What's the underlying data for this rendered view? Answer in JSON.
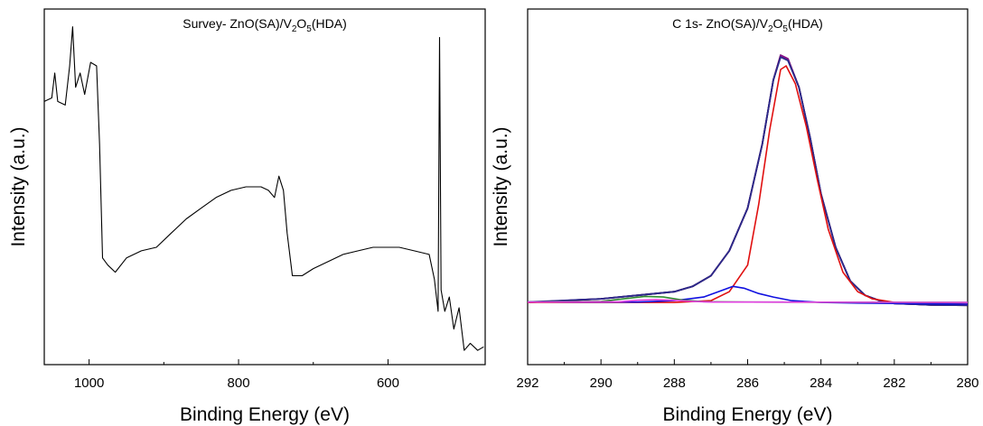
{
  "chart_data": [
    {
      "type": "line",
      "title_parts": [
        "Survey- ZnO(SA)/V",
        "2",
        "O",
        "5",
        "(HDA)"
      ],
      "xlabel": "Binding Energy (eV)",
      "ylabel": "Intensity (a.u.)",
      "xlim": [
        1060,
        470
      ],
      "ylim": [
        0,
        1
      ],
      "x_reversed": true,
      "y_ticks_shown": false,
      "x_ticks": [
        1000,
        800,
        600
      ],
      "x_tick_labels": [
        "1000",
        "800",
        "600"
      ],
      "grid": false,
      "series": [
        {
          "color": "#000000",
          "points": [
            [
              1060,
              0.74
            ],
            [
              1050,
              0.75
            ],
            [
              1046,
              0.82
            ],
            [
              1042,
              0.74
            ],
            [
              1032,
              0.73
            ],
            [
              1026,
              0.84
            ],
            [
              1022,
              0.95
            ],
            [
              1018,
              0.78
            ],
            [
              1012,
              0.82
            ],
            [
              1006,
              0.76
            ],
            [
              998,
              0.85
            ],
            [
              990,
              0.84
            ],
            [
              986,
              0.62
            ],
            [
              982,
              0.3
            ],
            [
              975,
              0.28
            ],
            [
              965,
              0.26
            ],
            [
              950,
              0.3
            ],
            [
              930,
              0.32
            ],
            [
              910,
              0.33
            ],
            [
              890,
              0.37
            ],
            [
              870,
              0.41
            ],
            [
              850,
              0.44
            ],
            [
              830,
              0.47
            ],
            [
              810,
              0.49
            ],
            [
              790,
              0.5
            ],
            [
              770,
              0.5
            ],
            [
              760,
              0.49
            ],
            [
              752,
              0.47
            ],
            [
              746,
              0.53
            ],
            [
              740,
              0.49
            ],
            [
              735,
              0.37
            ],
            [
              728,
              0.25
            ],
            [
              715,
              0.25
            ],
            [
              700,
              0.27
            ],
            [
              680,
              0.29
            ],
            [
              660,
              0.31
            ],
            [
              640,
              0.32
            ],
            [
              620,
              0.33
            ],
            [
              600,
              0.33
            ],
            [
              585,
              0.33
            ],
            [
              565,
              0.32
            ],
            [
              545,
              0.31
            ],
            [
              538,
              0.24
            ],
            [
              533,
              0.15
            ],
            [
              531,
              0.92
            ],
            [
              529,
              0.21
            ],
            [
              524,
              0.15
            ],
            [
              518,
              0.19
            ],
            [
              512,
              0.1
            ],
            [
              505,
              0.16
            ],
            [
              498,
              0.04
            ],
            [
              490,
              0.06
            ],
            [
              480,
              0.04
            ],
            [
              472,
              0.05
            ]
          ]
        }
      ]
    },
    {
      "type": "line",
      "title_parts": [
        "C 1s- ZnO(SA)/V",
        "2",
        "O",
        "5",
        "(HDA)"
      ],
      "xlabel": "Binding Energy (eV)",
      "ylabel": "Intensity (a.u.)",
      "xlim": [
        292,
        280
      ],
      "ylim": [
        0,
        1
      ],
      "x_reversed": true,
      "y_ticks_shown": false,
      "x_ticks": [
        292,
        290,
        288,
        286,
        284,
        282,
        280
      ],
      "x_tick_labels": [
        "292",
        "290",
        "288",
        "286",
        "284",
        "282",
        "280"
      ],
      "grid": false,
      "series": [
        {
          "color": "#000000",
          "points": [
            [
              292,
              0.175
            ],
            [
              290,
              0.185
            ],
            [
              289,
              0.195
            ],
            [
              288,
              0.205
            ],
            [
              287.5,
              0.22
            ],
            [
              287,
              0.25
            ],
            [
              286.5,
              0.32
            ],
            [
              286,
              0.44
            ],
            [
              285.6,
              0.62
            ],
            [
              285.3,
              0.8
            ],
            [
              285.1,
              0.87
            ],
            [
              284.9,
              0.86
            ],
            [
              284.6,
              0.78
            ],
            [
              284.3,
              0.64
            ],
            [
              284,
              0.48
            ],
            [
              283.6,
              0.33
            ],
            [
              283.2,
              0.235
            ],
            [
              282.8,
              0.195
            ],
            [
              282.4,
              0.18
            ],
            [
              282,
              0.172
            ],
            [
              281,
              0.168
            ],
            [
              280,
              0.167
            ]
          ]
        },
        {
          "color": "#8a0e8c",
          "points": [
            [
              292,
              0.175
            ],
            [
              290,
              0.185
            ],
            [
              289,
              0.195
            ],
            [
              288,
              0.205
            ],
            [
              287.5,
              0.22
            ],
            [
              287,
              0.25
            ],
            [
              286.5,
              0.32
            ],
            [
              286,
              0.44
            ],
            [
              285.6,
              0.62
            ],
            [
              285.3,
              0.8
            ],
            [
              285.1,
              0.87
            ],
            [
              284.9,
              0.86
            ],
            [
              284.6,
              0.78
            ],
            [
              284.3,
              0.64
            ],
            [
              284,
              0.48
            ],
            [
              283.6,
              0.33
            ],
            [
              283.2,
              0.235
            ],
            [
              282.8,
              0.195
            ],
            [
              282.4,
              0.18
            ],
            [
              282,
              0.172
            ],
            [
              281,
              0.168
            ],
            [
              280,
              0.167
            ]
          ]
        },
        {
          "color": "#2a2a8a",
          "points": [
            [
              292,
              0.176
            ],
            [
              290,
              0.185
            ],
            [
              289,
              0.195
            ],
            [
              288,
              0.205
            ],
            [
              287.5,
              0.22
            ],
            [
              287,
              0.25
            ],
            [
              286.5,
              0.32
            ],
            [
              286,
              0.44
            ],
            [
              285.6,
              0.62
            ],
            [
              285.3,
              0.8
            ],
            [
              285.1,
              0.865
            ],
            [
              284.9,
              0.855
            ],
            [
              284.6,
              0.78
            ],
            [
              284.3,
              0.64
            ],
            [
              284,
              0.48
            ],
            [
              283.6,
              0.33
            ],
            [
              283.2,
              0.235
            ],
            [
              282.8,
              0.195
            ],
            [
              282.4,
              0.18
            ],
            [
              282,
              0.172
            ],
            [
              281,
              0.168
            ],
            [
              280,
              0.167
            ]
          ]
        },
        {
          "color": "#e01010",
          "points": [
            [
              292,
              0.175
            ],
            [
              288,
              0.175
            ],
            [
              287,
              0.18
            ],
            [
              286.5,
              0.205
            ],
            [
              286,
              0.28
            ],
            [
              285.7,
              0.45
            ],
            [
              285.4,
              0.66
            ],
            [
              285.1,
              0.83
            ],
            [
              284.95,
              0.84
            ],
            [
              284.7,
              0.79
            ],
            [
              284.4,
              0.67
            ],
            [
              284.1,
              0.52
            ],
            [
              283.8,
              0.38
            ],
            [
              283.4,
              0.26
            ],
            [
              283,
              0.205
            ],
            [
              282.6,
              0.185
            ],
            [
              282,
              0.175
            ],
            [
              280,
              0.17
            ]
          ]
        },
        {
          "color": "#1010e0",
          "points": [
            [
              292,
              0.176
            ],
            [
              289,
              0.176
            ],
            [
              288,
              0.18
            ],
            [
              287.2,
              0.19
            ],
            [
              286.8,
              0.205
            ],
            [
              286.4,
              0.22
            ],
            [
              286.1,
              0.215
            ],
            [
              285.7,
              0.2
            ],
            [
              285.3,
              0.19
            ],
            [
              284.8,
              0.18
            ],
            [
              284,
              0.175
            ],
            [
              283,
              0.173
            ],
            [
              282,
              0.172
            ],
            [
              280,
              0.17
            ]
          ]
        },
        {
          "color": "#2f8a2f",
          "points": [
            [
              292,
              0.176
            ],
            [
              290,
              0.178
            ],
            [
              289.3,
              0.186
            ],
            [
              288.8,
              0.192
            ],
            [
              288.3,
              0.19
            ],
            [
              287.8,
              0.182
            ],
            [
              287.2,
              0.177
            ],
            [
              286,
              0.176
            ],
            [
              280,
              0.175
            ]
          ]
        },
        {
          "color": "#e040e0",
          "points": [
            [
              292,
              0.176
            ],
            [
              289.5,
              0.177
            ],
            [
              289,
              0.181
            ],
            [
              288.5,
              0.183
            ],
            [
              288,
              0.181
            ],
            [
              287.5,
              0.178
            ],
            [
              287,
              0.176
            ],
            [
              286,
              0.176
            ],
            [
              280,
              0.175
            ]
          ]
        }
      ]
    }
  ]
}
